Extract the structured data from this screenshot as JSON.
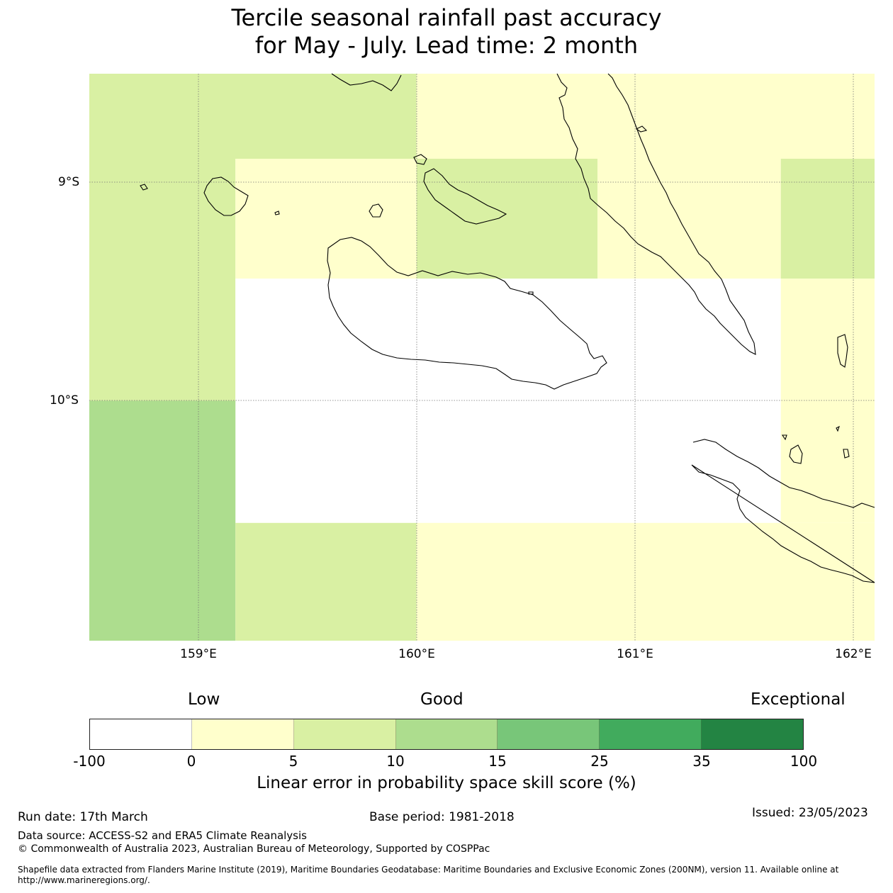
{
  "title": {
    "line1": "Tercile seasonal rainfall past accuracy",
    "line2": "for May - July. Lead time: 2 month"
  },
  "map": {
    "lat_labels": [
      "9°S",
      "10°S"
    ],
    "lon_labels": [
      "159°E",
      "160°E",
      "161°E",
      "162°E"
    ],
    "extent": {
      "lon_min": 158.5,
      "lon_max": 162.1,
      "lat_min": -11.1,
      "lat_max": -8.5
    },
    "colors": {
      "white": "#ffffff",
      "yellow": "#ffffcc",
      "light_green": "#d9f0a3",
      "mid_green": "#addd8e"
    },
    "cells": [
      {
        "lon": [
          158.5,
          160.0
        ],
        "lat": [
          -8.5,
          -8.89
        ],
        "category": "5-10"
      },
      {
        "lon": [
          160.0,
          162.1
        ],
        "lat": [
          -8.5,
          -8.89
        ],
        "category": "0-5"
      },
      {
        "lon": [
          158.5,
          159.17
        ],
        "lat": [
          -8.89,
          -10.0
        ],
        "category": "5-10"
      },
      {
        "lon": [
          159.17,
          160.0
        ],
        "lat": [
          -8.89,
          -9.44
        ],
        "category": "0-5"
      },
      {
        "lon": [
          160.0,
          160.83
        ],
        "lat": [
          -8.89,
          -9.44
        ],
        "category": "5-10"
      },
      {
        "lon": [
          160.83,
          161.67
        ],
        "lat": [
          -8.89,
          -9.44
        ],
        "category": "0-5"
      },
      {
        "lon": [
          161.67,
          162.1
        ],
        "lat": [
          -8.89,
          -9.44
        ],
        "category": "5-10"
      },
      {
        "lon": [
          159.17,
          161.67
        ],
        "lat": [
          -9.44,
          -10.56
        ],
        "category": "-100-0"
      },
      {
        "lon": [
          161.67,
          162.1
        ],
        "lat": [
          -9.44,
          -10.56
        ],
        "category": "0-5"
      },
      {
        "lon": [
          158.5,
          159.17
        ],
        "lat": [
          -10.0,
          -11.1
        ],
        "category": "10-15"
      },
      {
        "lon": [
          159.17,
          160.0
        ],
        "lat": [
          -10.56,
          -11.1
        ],
        "category": "5-10"
      },
      {
        "lon": [
          160.0,
          162.1
        ],
        "lat": [
          -10.56,
          -11.1
        ],
        "category": "0-5"
      }
    ]
  },
  "colorbar": {
    "categories": [
      "Low",
      "Good",
      "Exceptional"
    ],
    "ticks": [
      "-100",
      "0",
      "5",
      "10",
      "15",
      "25",
      "35",
      "100"
    ],
    "colors": [
      "#ffffff",
      "#ffffcc",
      "#d9f0a3",
      "#addd8e",
      "#78c679",
      "#41ab5d",
      "#238443"
    ],
    "title": "Linear error in probability space skill score (%)"
  },
  "footer": {
    "run_date": "Run date: 17th March",
    "base_period": "Base period: 1981-2018",
    "issued": "Issued: 23/05/2023",
    "data_source": "Data source: ACCESS-S2 and ERA5 Climate Reanalysis",
    "copyright": "© Commonwealth of Australia 2023, Australian Bureau of Meteorology, Supported by COSPPac",
    "shapefile": "Shapefile data extracted from Flanders Marine Institute (2019), Maritime Boundaries Geodatabase: Maritime Boundaries and Exclusive Economic Zones (200NM), version 11. Available online at http://www.marineregions.org/."
  }
}
